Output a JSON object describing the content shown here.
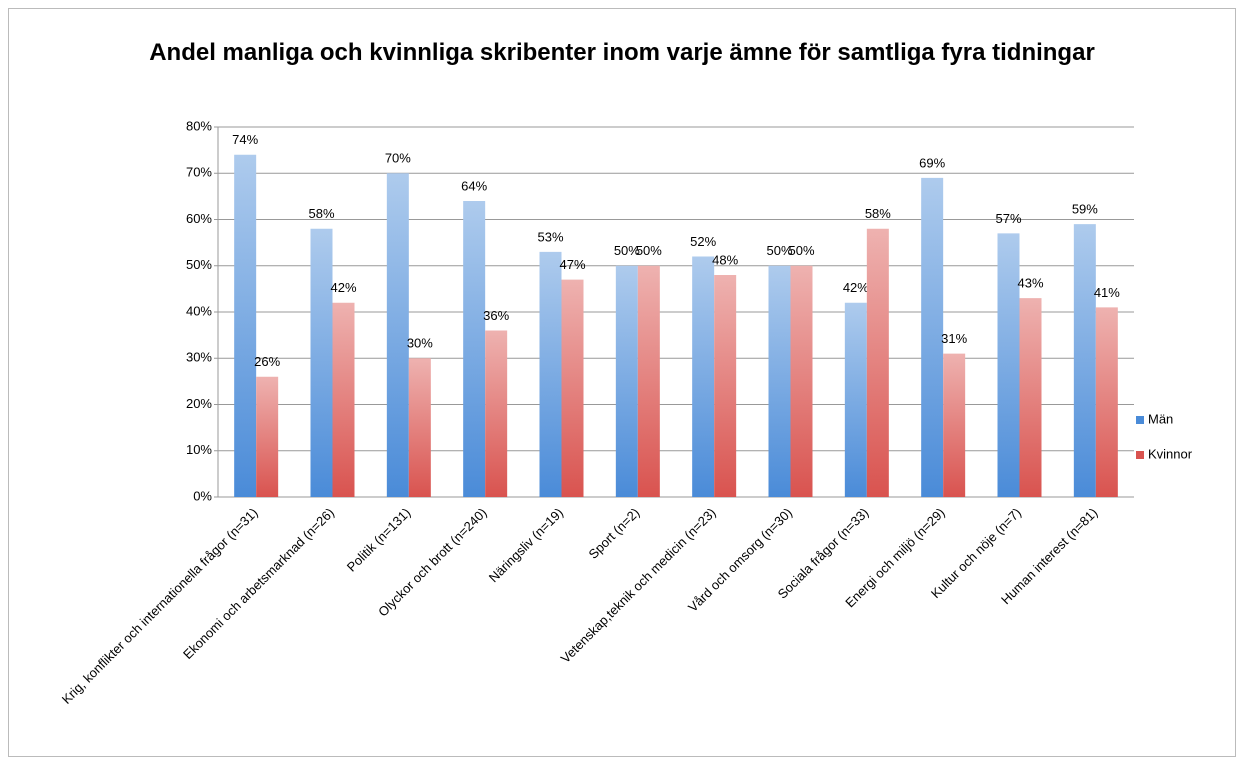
{
  "chart_data": {
    "type": "bar",
    "title": "Andel manliga och kvinnliga skribenter inom varje ämne för samtliga fyra tidningar",
    "categories": [
      "Krig, konflikter och internationella frågor (n=31)",
      "Ekonomi och arbetsmarknad (n=26)",
      "Politik (n=131)",
      "Olyckor och brott (n=240)",
      "Näringsliv (n=19)",
      "Sport (n=2)",
      "Vetenskap,teknik och medicin (n=23)",
      "Vård och omsorg (n=30)",
      "Sociala frågor (n=33)",
      "Energi och miljö (n=29)",
      "Kultur och nöje (n=7)",
      "Human interest (n=81)"
    ],
    "series": [
      {
        "name": "Män",
        "color": "#4a8bd8",
        "values": [
          74,
          58,
          70,
          64,
          53,
          50,
          52,
          50,
          42,
          69,
          57,
          59
        ],
        "value_labels": [
          "74%",
          "58%",
          "70%",
          "64%",
          "53%",
          "50%",
          "52%",
          "50%",
          "42%",
          "69%",
          "57%",
          "59%"
        ]
      },
      {
        "name": "Kvinnor",
        "color": "#d9534f",
        "values": [
          26,
          42,
          30,
          36,
          47,
          50,
          48,
          50,
          58,
          31,
          43,
          41
        ],
        "value_labels": [
          "26%",
          "42%",
          "30%",
          "36%",
          "47%",
          "50%",
          "48%",
          "50%",
          "58%",
          "31%",
          "43%",
          "41%"
        ]
      }
    ],
    "ylim": [
      0,
      80
    ],
    "yticks": [
      {
        "value": 0,
        "label": "0%"
      },
      {
        "value": 10,
        "label": "10%"
      },
      {
        "value": 20,
        "label": "20%"
      },
      {
        "value": 30,
        "label": "30%"
      },
      {
        "value": 40,
        "label": "40%"
      },
      {
        "value": 50,
        "label": "50%"
      },
      {
        "value": 60,
        "label": "60%"
      },
      {
        "value": 70,
        "label": "70%"
      },
      {
        "value": 80,
        "label": "80%"
      }
    ],
    "grid": true,
    "legend": "right"
  }
}
